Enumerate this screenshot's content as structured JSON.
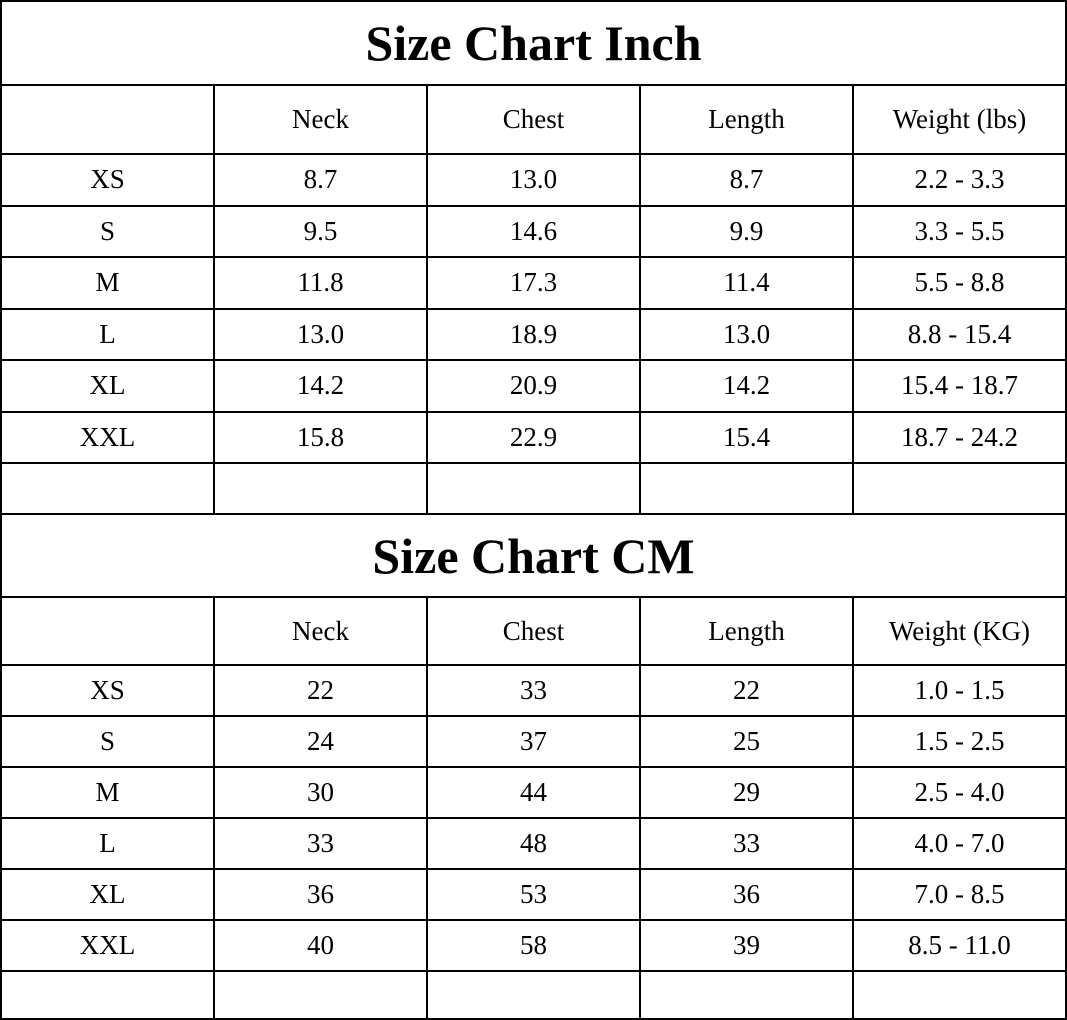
{
  "tables": [
    {
      "title": "Size Chart Inch",
      "headers": [
        "",
        "Neck",
        "Chest",
        "Length",
        "Weight (lbs)"
      ],
      "rows": [
        [
          "XS",
          "8.7",
          "13.0",
          "8.7",
          "2.2 - 3.3"
        ],
        [
          "S",
          "9.5",
          "14.6",
          "9.9",
          "3.3 - 5.5"
        ],
        [
          "M",
          "11.8",
          "17.3",
          "11.4",
          "5.5 - 8.8"
        ],
        [
          "L",
          "13.0",
          "18.9",
          "13.0",
          "8.8 - 15.4"
        ],
        [
          "XL",
          "14.2",
          "20.9",
          "14.2",
          "15.4 - 18.7"
        ],
        [
          "XXL",
          "15.8",
          "22.9",
          "15.4",
          "18.7 - 24.2"
        ],
        [
          "",
          "",
          "",
          "",
          ""
        ]
      ]
    },
    {
      "title": "Size Chart CM",
      "headers": [
        "",
        "Neck",
        "Chest",
        "Length",
        "Weight (KG)"
      ],
      "rows": [
        [
          "XS",
          "22",
          "33",
          "22",
          "1.0 - 1.5"
        ],
        [
          "S",
          "24",
          "37",
          "25",
          "1.5 - 2.5"
        ],
        [
          "M",
          "30",
          "44",
          "29",
          "2.5 - 4.0"
        ],
        [
          "L",
          "33",
          "48",
          "33",
          "4.0 - 7.0"
        ],
        [
          "XL",
          "36",
          "53",
          "36",
          "7.0 - 8.5"
        ],
        [
          "XXL",
          "40",
          "58",
          "39",
          "8.5 - 11.0"
        ],
        [
          "",
          "",
          "",
          "",
          ""
        ]
      ]
    }
  ]
}
